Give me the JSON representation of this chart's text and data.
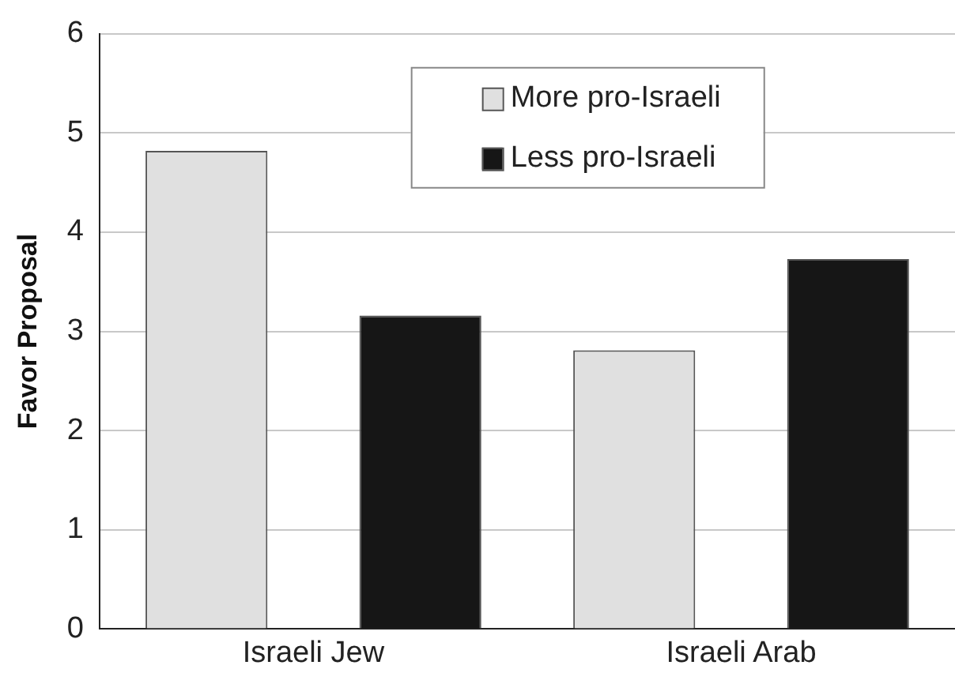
{
  "chart_data": {
    "type": "bar",
    "ylabel": "Favor Proposal",
    "categories": [
      "Israeli Jew",
      "Israeli Arab"
    ],
    "series": [
      {
        "name": "More pro-Israeli",
        "color": "#e0e0e0",
        "values": [
          4.82,
          2.81
        ]
      },
      {
        "name": "Less pro-Israeli",
        "color": "#161616",
        "values": [
          3.16,
          3.73
        ]
      }
    ],
    "ylim": [
      0,
      6
    ],
    "yticks": [
      0,
      1,
      2,
      3,
      4,
      5,
      6
    ],
    "grid": "y",
    "legend": "top"
  }
}
